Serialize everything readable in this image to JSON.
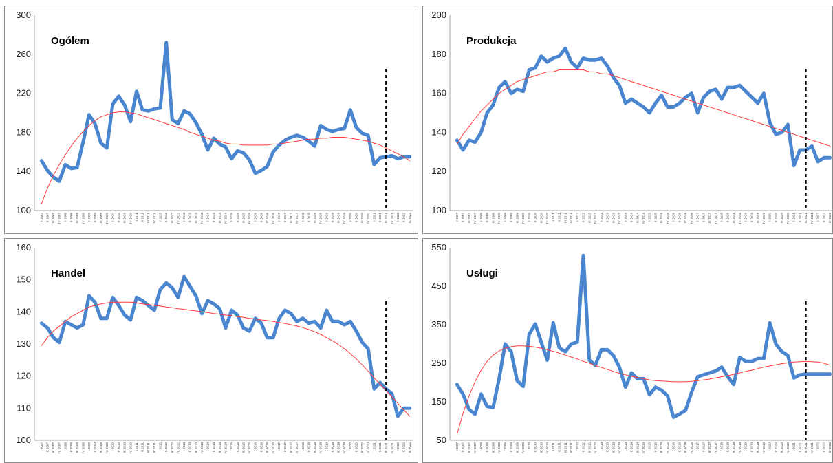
{
  "chart_data": [
    {
      "type": "line",
      "title": "Ogółem",
      "ylim": [
        100,
        300
      ],
      "yticks": [
        100,
        140,
        180,
        220,
        260,
        300
      ],
      "marker_at": "III 2021",
      "categories": [
        "I 2007",
        "II 2007",
        "III 2007",
        "IV 2007",
        "I 2008",
        "II 2008",
        "III 2008",
        "IV 2008",
        "I 2009",
        "II 2009",
        "III 2009",
        "IV 2009",
        "I 2010",
        "II 2010",
        "III 2010",
        "IV 2010",
        "I 2011",
        "II 2011",
        "III 2011",
        "IV 2011",
        "I 2012",
        "II 2012",
        "III 2012",
        "IV 2012",
        "I 2013",
        "II 2013",
        "III 2013",
        "IV 2013",
        "I 2014",
        "II 2014",
        "III 2014",
        "IV 2014",
        "I 2015",
        "II 2015",
        "III 2015",
        "IV 2015",
        "I 2016",
        "II 2016",
        "III 2016",
        "IV 2016",
        "I 2017",
        "II 2017",
        "III 2017",
        "IV 2017",
        "I 2018",
        "II 2018",
        "III 2018",
        "IV 2018",
        "I 2019",
        "II 2019",
        "III 2019",
        "IV 2019",
        "I 2020",
        "II 2020",
        "III 2020",
        "IV 2020",
        "I 2021",
        "II 2021",
        "III 2021",
        "IV 2021",
        "I 2022",
        "II 2022",
        "III 2022"
      ],
      "series": [
        {
          "color": "#4a86cf",
          "values": [
            151,
            141,
            134,
            130,
            147,
            143,
            144,
            170,
            198,
            189,
            169,
            164,
            209,
            217,
            208,
            191,
            222,
            203,
            202,
            204,
            205,
            272,
            193,
            189,
            202,
            199,
            190,
            178,
            162,
            174,
            168,
            165,
            153,
            161,
            159,
            152,
            138,
            141,
            145,
            160,
            167,
            172,
            175,
            177,
            175,
            171,
            166,
            187,
            183,
            181,
            183,
            184,
            203,
            185,
            179,
            177,
            147,
            154,
            155,
            156,
            153,
            155,
            155
          ]
        },
        {
          "color": "#ff3b3b",
          "trend": true,
          "values": [
            107,
            123,
            136,
            147,
            157,
            166,
            174,
            181,
            187,
            192,
            196,
            198,
            200,
            201,
            201,
            200,
            199,
            197,
            195,
            193,
            191,
            189,
            187,
            185,
            183,
            180,
            178,
            176,
            174,
            172,
            171,
            169,
            168,
            168,
            167,
            167,
            167,
            167,
            167,
            168,
            168,
            169,
            170,
            171,
            172,
            173,
            173,
            174,
            174,
            175,
            175,
            175,
            174,
            173,
            172,
            171,
            169,
            167,
            164,
            161,
            158,
            155,
            151
          ]
        }
      ]
    },
    {
      "type": "line",
      "title": "Produkcja",
      "ylim": [
        100,
        200
      ],
      "yticks": [
        100,
        120,
        140,
        160,
        180,
        200
      ],
      "marker_at": "III 2021",
      "categories": [
        "I 2007",
        "II 2007",
        "III 2007",
        "IV 2007",
        "I 2008",
        "II 2008",
        "III 2008",
        "IV 2008",
        "I 2009",
        "II 2009",
        "III 2009",
        "IV 2009",
        "I 2010",
        "II 2010",
        "III 2010",
        "IV 2010",
        "I 2011",
        "II 2011",
        "III 2011",
        "IV 2011",
        "I 2012",
        "II 2012",
        "III 2012",
        "IV 2012",
        "I 2013",
        "II 2013",
        "III 2013",
        "IV 2013",
        "I 2014",
        "II 2014",
        "III 2014",
        "IV 2014",
        "I 2015",
        "II 2015",
        "III 2015",
        "IV 2015",
        "I 2016",
        "II 2016",
        "III 2016",
        "IV 2016",
        "I 2017",
        "II 2017",
        "III 2017",
        "IV 2017",
        "I 2018",
        "II 2018",
        "III 2018",
        "IV 2018",
        "I 2019",
        "II 2019",
        "III 2019",
        "IV 2019",
        "I 2020",
        "II 2020",
        "III 2020",
        "IV 2020",
        "I 2021",
        "II 2021",
        "III 2021",
        "IV 2021",
        "I 2022",
        "II 2022",
        "III 2022"
      ],
      "series": [
        {
          "color": "#4a86cf",
          "values": [
            136,
            131,
            136,
            135,
            140,
            150,
            154,
            163,
            166,
            160,
            162,
            161,
            172,
            173,
            179,
            176,
            178,
            179,
            183,
            176,
            173,
            178,
            177,
            177,
            178,
            174,
            168,
            164,
            155,
            157,
            155,
            153,
            150,
            155,
            159,
            153,
            153,
            155,
            158,
            160,
            150,
            158,
            161,
            162,
            157,
            163,
            163,
            164,
            161,
            158,
            155,
            160,
            145,
            139,
            140,
            144,
            123,
            131,
            131,
            133,
            125,
            127,
            127
          ]
        },
        {
          "color": "#ff3b3b",
          "trend": true,
          "values": [
            134,
            139,
            143,
            147,
            151,
            154,
            157,
            160,
            162,
            164,
            166,
            167,
            168,
            169,
            170,
            171,
            171,
            172,
            172,
            172,
            172,
            172,
            171,
            171,
            170,
            170,
            169,
            168,
            167,
            166,
            165,
            164,
            163,
            162,
            161,
            160,
            159,
            158,
            157,
            156,
            155,
            154,
            153,
            152,
            151,
            150,
            149,
            148,
            147,
            146,
            145,
            144,
            143,
            142,
            141,
            140,
            139,
            138,
            137,
            136,
            135,
            134,
            133
          ]
        }
      ]
    },
    {
      "type": "line",
      "title": "Handel",
      "ylim": [
        100,
        160
      ],
      "yticks": [
        100,
        110,
        120,
        130,
        140,
        150,
        160
      ],
      "marker_at": "III 2021",
      "categories": [
        "I 2007",
        "II 2007",
        "III 2007",
        "IV 2007",
        "I 2008",
        "II 2008",
        "III 2008",
        "IV 2008",
        "I 2009",
        "II 2009",
        "III 2009",
        "IV 2009",
        "I 2010",
        "II 2010",
        "III 2010",
        "IV 2010",
        "I 2011",
        "II 2011",
        "III 2011",
        "IV 2011",
        "I 2012",
        "II 2012",
        "III 2012",
        "IV 2012",
        "I 2013",
        "II 2013",
        "III 2013",
        "IV 2013",
        "I 2014",
        "II 2014",
        "III 2014",
        "IV 2014",
        "I 2015",
        "II 2015",
        "III 2015",
        "IV 2015",
        "I 2016",
        "II 2016",
        "III 2016",
        "IV 2016",
        "I 2017",
        "II 2017",
        "III 2017",
        "IV 2017",
        "I 2018",
        "II 2018",
        "III 2018",
        "IV 2018",
        "I 2019",
        "II 2019",
        "III 2019",
        "IV 2019",
        "I 2020",
        "II 2020",
        "III 2020",
        "IV 2020",
        "I 2021",
        "II 2021",
        "III 2021",
        "IV 2021",
        "I 2022",
        "II 2022",
        "III 2022"
      ],
      "series": [
        {
          "color": "#4a86cf",
          "values": [
            136.5,
            135,
            132,
            130.5,
            137,
            136,
            135,
            136,
            145,
            143,
            138,
            138,
            144.5,
            142,
            139,
            137.5,
            144.5,
            143.5,
            142,
            140.5,
            147,
            149,
            147.5,
            144.5,
            151,
            148,
            145,
            139.5,
            143.5,
            142.5,
            141,
            135,
            140.5,
            139,
            135,
            134,
            138,
            136.5,
            132,
            132,
            138,
            140.5,
            139.5,
            137,
            138,
            136.5,
            137,
            135,
            140.5,
            137,
            137,
            136,
            137,
            134,
            130.5,
            128.5,
            116,
            118,
            116,
            114.5,
            107.5,
            110,
            110
          ]
        },
        {
          "color": "#ff3b3b",
          "trend": true,
          "values": [
            129.5,
            132,
            134,
            135.5,
            137,
            138.5,
            139.5,
            140.5,
            141.5,
            142,
            142.5,
            142.8,
            143,
            143,
            143,
            143,
            142.8,
            142.5,
            142.3,
            142,
            141.8,
            141.5,
            141.3,
            141,
            140.8,
            140.5,
            140.3,
            140,
            139.8,
            139.5,
            139.3,
            139,
            138.8,
            138.5,
            138.3,
            138,
            137.8,
            137.5,
            137.3,
            137,
            136.7,
            136.4,
            136,
            135.6,
            135.1,
            134.5,
            133.8,
            133,
            132,
            131,
            129.8,
            128.5,
            127,
            125.3,
            123.5,
            121.5,
            119.5,
            117.5,
            115.5,
            113.5,
            111.5,
            109.5,
            107.5
          ]
        }
      ]
    },
    {
      "type": "line",
      "title": "Usługi",
      "ylim": [
        50,
        550
      ],
      "yticks": [
        50,
        150,
        250,
        350,
        450,
        550
      ],
      "marker_at": "III 2021",
      "categories": [
        "I 2007",
        "II 2007",
        "III 2007",
        "IV 2007",
        "I 2008",
        "II 2008",
        "III 2008",
        "IV 2008",
        "I 2009",
        "II 2009",
        "III 2009",
        "IV 2009",
        "I 2010",
        "II 2010",
        "III 2010",
        "IV 2010",
        "I 2011",
        "II 2011",
        "III 2011",
        "IV 2011",
        "I 2012",
        "II 2012",
        "III 2012",
        "IV 2012",
        "I 2013",
        "II 2013",
        "III 2013",
        "IV 2013",
        "I 2014",
        "II 2014",
        "III 2014",
        "IV 2014",
        "I 2015",
        "II 2015",
        "III 2015",
        "IV 2015",
        "I 2016",
        "II 2016",
        "III 2016",
        "IV 2016",
        "I 2017",
        "II 2017",
        "III 2017",
        "IV 2017",
        "I 2018",
        "II 2018",
        "III 2018",
        "IV 2018",
        "I 2019",
        "II 2019",
        "III 2019",
        "IV 2019",
        "I 2020",
        "II 2020",
        "III 2020",
        "IV 2020",
        "I 2021",
        "II 2021",
        "III 2021",
        "IV 2021",
        "I 2022",
        "II 2022",
        "III 2022"
      ],
      "series": [
        {
          "color": "#4a86cf",
          "values": [
            195,
            170,
            130,
            118,
            170,
            138,
            135,
            210,
            300,
            280,
            205,
            190,
            325,
            352,
            305,
            258,
            355,
            290,
            280,
            300,
            305,
            530,
            258,
            245,
            285,
            285,
            270,
            240,
            188,
            225,
            210,
            210,
            168,
            188,
            180,
            165,
            110,
            118,
            128,
            175,
            215,
            220,
            225,
            230,
            240,
            215,
            195,
            265,
            255,
            255,
            262,
            262,
            355,
            300,
            280,
            270,
            212,
            220,
            222,
            222,
            222,
            222,
            222
          ]
        },
        {
          "color": "#ff3b3b",
          "trend": true,
          "values": [
            65,
            120,
            165,
            202,
            232,
            255,
            271,
            282,
            289,
            293,
            295,
            295,
            294,
            292,
            289,
            285,
            281,
            276,
            271,
            266,
            261,
            255,
            250,
            244,
            239,
            234,
            229,
            224,
            220,
            216,
            213,
            210,
            207,
            205,
            204,
            203,
            202,
            202,
            202,
            203,
            205,
            207,
            209,
            212,
            215,
            218,
            221,
            225,
            229,
            232,
            236,
            240,
            243,
            246,
            249,
            251,
            253,
            254,
            255,
            254,
            253,
            250,
            245
          ]
        }
      ]
    }
  ]
}
